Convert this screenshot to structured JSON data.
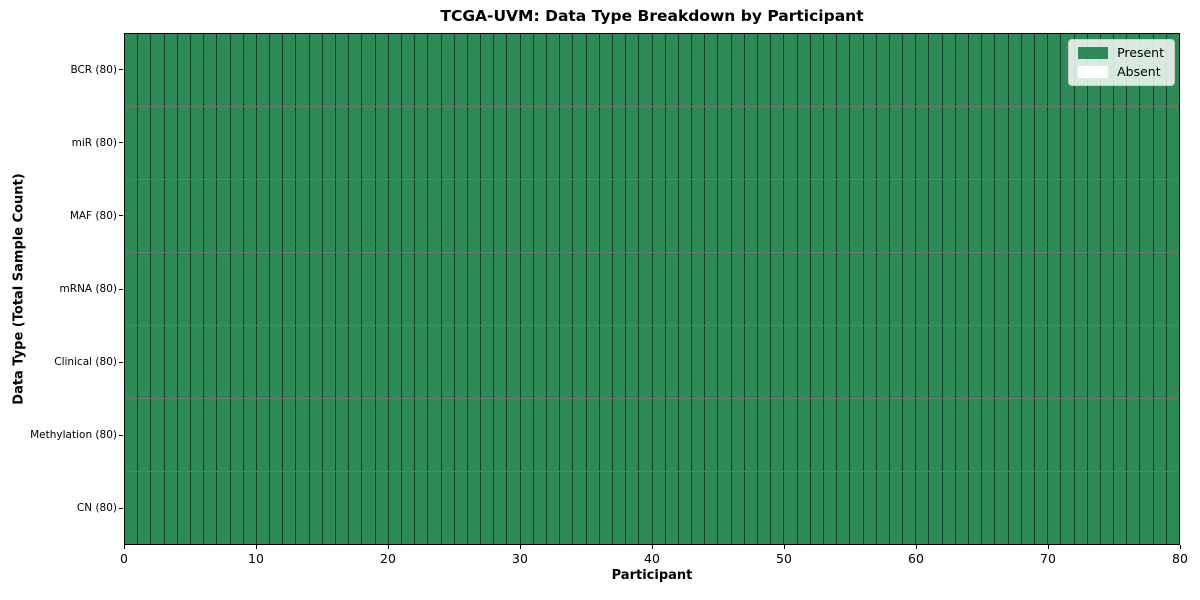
{
  "chart_data": {
    "type": "heatmap",
    "title": "TCGA-UVM: Data Type Breakdown by Participant",
    "xlabel": "Participant",
    "ylabel": "Data Type (Total Sample Count)",
    "n_participants": 80,
    "xlim": [
      0,
      80
    ],
    "x_ticks": [
      0,
      10,
      20,
      30,
      40,
      50,
      60,
      70,
      80
    ],
    "rows": [
      {
        "label": "BCR (80)",
        "data_type": "BCR",
        "total_samples": 80,
        "present_count": 80,
        "absent_count": 0
      },
      {
        "label": "miR (80)",
        "data_type": "miR",
        "total_samples": 80,
        "present_count": 80,
        "absent_count": 0
      },
      {
        "label": "MAF (80)",
        "data_type": "MAF",
        "total_samples": 80,
        "present_count": 80,
        "absent_count": 0
      },
      {
        "label": "mRNA (80)",
        "data_type": "mRNA",
        "total_samples": 80,
        "present_count": 80,
        "absent_count": 0
      },
      {
        "label": "Clinical (80)",
        "data_type": "Clinical",
        "total_samples": 80,
        "present_count": 80,
        "absent_count": 0
      },
      {
        "label": "Methylation (80)",
        "data_type": "Methylation",
        "total_samples": 80,
        "present_count": 80,
        "absent_count": 0
      },
      {
        "label": "CN (80)",
        "data_type": "CN",
        "total_samples": 80,
        "present_count": 80,
        "absent_count": 0
      }
    ],
    "legend": {
      "position": "upper-right",
      "entries": [
        {
          "label": "Present",
          "color": "#2e8b57"
        },
        {
          "label": "Absent",
          "color": "#ffffff"
        }
      ]
    },
    "colors": {
      "present": "#2e8b57",
      "absent": "#ffffff",
      "cell_edge": "#17452b",
      "axis": "#000000",
      "background": "#ffffff"
    },
    "grid": false
  }
}
